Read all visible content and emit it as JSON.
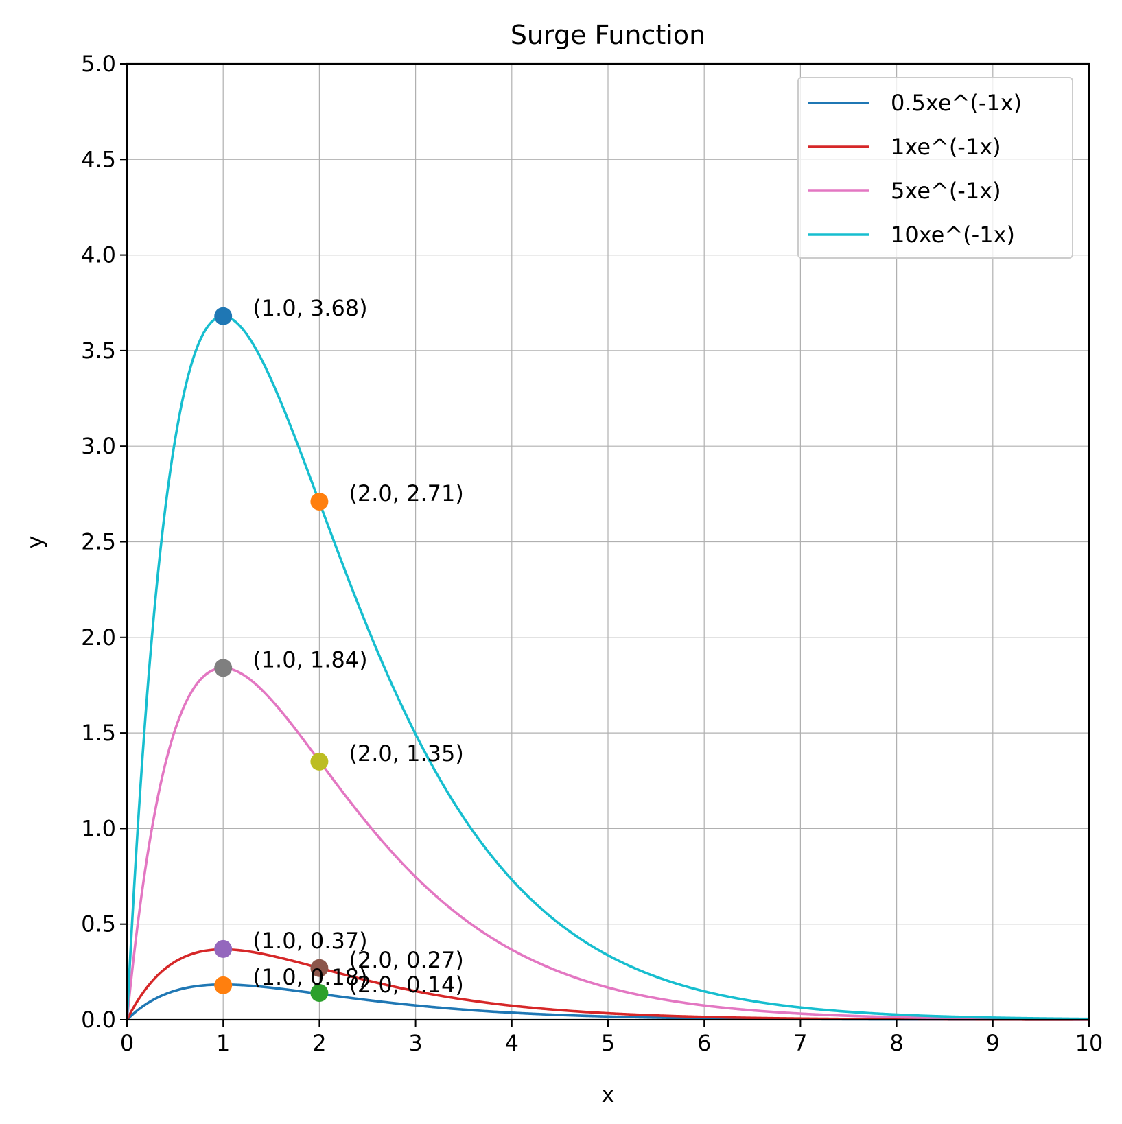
{
  "chart_data": {
    "type": "line",
    "title": "Surge Function",
    "xlabel": "x",
    "ylabel": "y",
    "xlim": [
      0,
      10
    ],
    "ylim": [
      0,
      5
    ],
    "xticks": [
      0,
      1,
      2,
      3,
      4,
      5,
      6,
      7,
      8,
      9,
      10
    ],
    "xtick_labels": [
      "0",
      "1",
      "2",
      "3",
      "4",
      "5",
      "6",
      "7",
      "8",
      "9",
      "10"
    ],
    "yticks": [
      0,
      0.5,
      1,
      1.5,
      2,
      2.5,
      3,
      3.5,
      4,
      4.5,
      5
    ],
    "ytick_labels": [
      "0.0",
      "0.5",
      "1.0",
      "1.5",
      "2.0",
      "2.5",
      "3.0",
      "3.5",
      "4.0",
      "4.5",
      "5.0"
    ],
    "grid": true,
    "legend_position": "top-right",
    "series": [
      {
        "name": "0.5xe^(-1x)",
        "A": 0.5,
        "b": 1,
        "color": "#1f77b4"
      },
      {
        "name": "1xe^(-1x)",
        "A": 1,
        "b": 1,
        "color": "#d62728"
      },
      {
        "name": "5xe^(-1x)",
        "A": 5,
        "b": 1,
        "color": "#e377c2"
      },
      {
        "name": "10xe^(-1x)",
        "A": 10,
        "b": 1,
        "color": "#17becf"
      }
    ],
    "annotations": [
      {
        "x": 1.0,
        "y": 3.68,
        "label": "(1.0, 3.68)",
        "color": "#1f77b4"
      },
      {
        "x": 2.0,
        "y": 2.71,
        "label": "(2.0, 2.71)",
        "color": "#ff7f0e"
      },
      {
        "x": 1.0,
        "y": 1.84,
        "label": "(1.0, 1.84)",
        "color": "#7f7f7f"
      },
      {
        "x": 2.0,
        "y": 1.35,
        "label": "(2.0, 1.35)",
        "color": "#bcbd22"
      },
      {
        "x": 1.0,
        "y": 0.37,
        "label": "(1.0, 0.37)",
        "color": "#9467bd"
      },
      {
        "x": 2.0,
        "y": 0.27,
        "label": "(2.0, 0.27)",
        "color": "#8c564b"
      },
      {
        "x": 1.0,
        "y": 0.18,
        "label": "(1.0, 0.18)",
        "color": "#ff7f0e"
      },
      {
        "x": 2.0,
        "y": 0.14,
        "label": "(2.0, 0.14)",
        "color": "#2ca02c"
      }
    ]
  }
}
